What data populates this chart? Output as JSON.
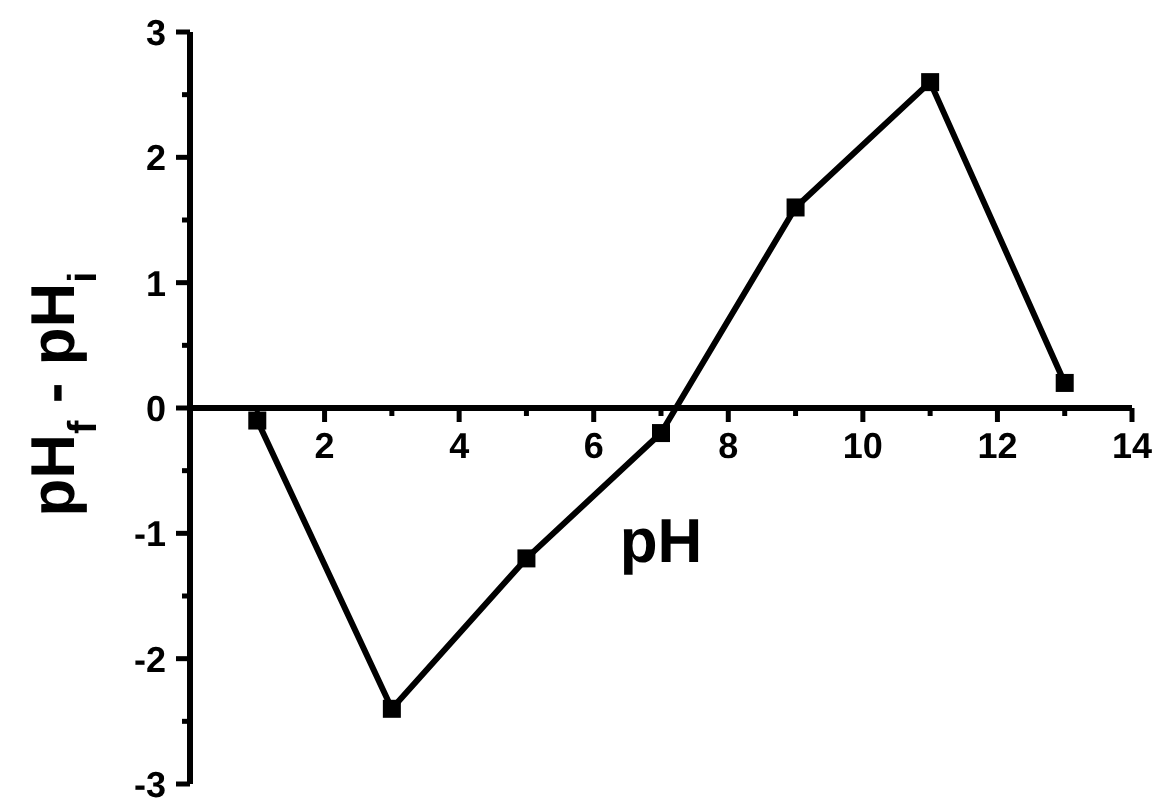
{
  "chart_data": {
    "type": "line",
    "xlabel": "pH",
    "ylabel": "pH$_{f}$ - pH$_{i}$",
    "x": [
      1,
      3,
      5,
      7,
      9,
      11,
      13
    ],
    "series": [
      {
        "color": "#000000",
        "values": [
          -0.1,
          -2.4,
          -1.2,
          -0.2,
          1.6,
          2.6,
          0.2
        ]
      }
    ],
    "xlim": [
      0,
      14
    ],
    "xticks": [
      {
        "value": 0,
        "label": null
      },
      {
        "value": 1,
        "label": null
      },
      2,
      {
        "value": 3,
        "label": null
      },
      4,
      {
        "value": 5,
        "label": null
      },
      6,
      {
        "value": 7,
        "label": null
      },
      8,
      {
        "value": 9,
        "label": null
      },
      10,
      {
        "value": 11,
        "label": null
      },
      12,
      {
        "value": 13,
        "label": null
      },
      14
    ],
    "ylim": [
      -3,
      3
    ],
    "yticks": [
      -3,
      {
        "value": -2.5,
        "label": null
      },
      -2,
      {
        "value": -1.5,
        "label": null
      },
      -1,
      {
        "value": -0.5,
        "label": null
      },
      0,
      {
        "value": 0.5,
        "label": null
      },
      1,
      {
        "value": 1.5,
        "label": null
      },
      2,
      {
        "value": 2.5,
        "label": null
      },
      3
    ],
    "marker": "square",
    "line_style": "solid"
  }
}
